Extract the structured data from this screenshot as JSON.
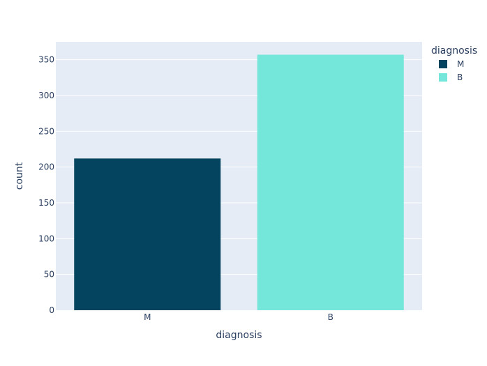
{
  "chart_data": {
    "type": "bar",
    "categories": [
      "M",
      "B"
    ],
    "series": [
      {
        "name": "M",
        "category": "M",
        "value": 212,
        "color": "#05445e"
      },
      {
        "name": "B",
        "category": "B",
        "value": 357,
        "color": "#75e6da"
      }
    ],
    "xlabel": "diagnosis",
    "ylabel": "count",
    "ylim": [
      0,
      375
    ],
    "yticks": [
      0,
      50,
      100,
      150,
      200,
      250,
      300,
      350
    ],
    "grid": true,
    "plot_background": "#e5ecf6",
    "legend": {
      "title": "diagnosis",
      "placement": "top-right",
      "items": [
        "M",
        "B"
      ]
    }
  }
}
